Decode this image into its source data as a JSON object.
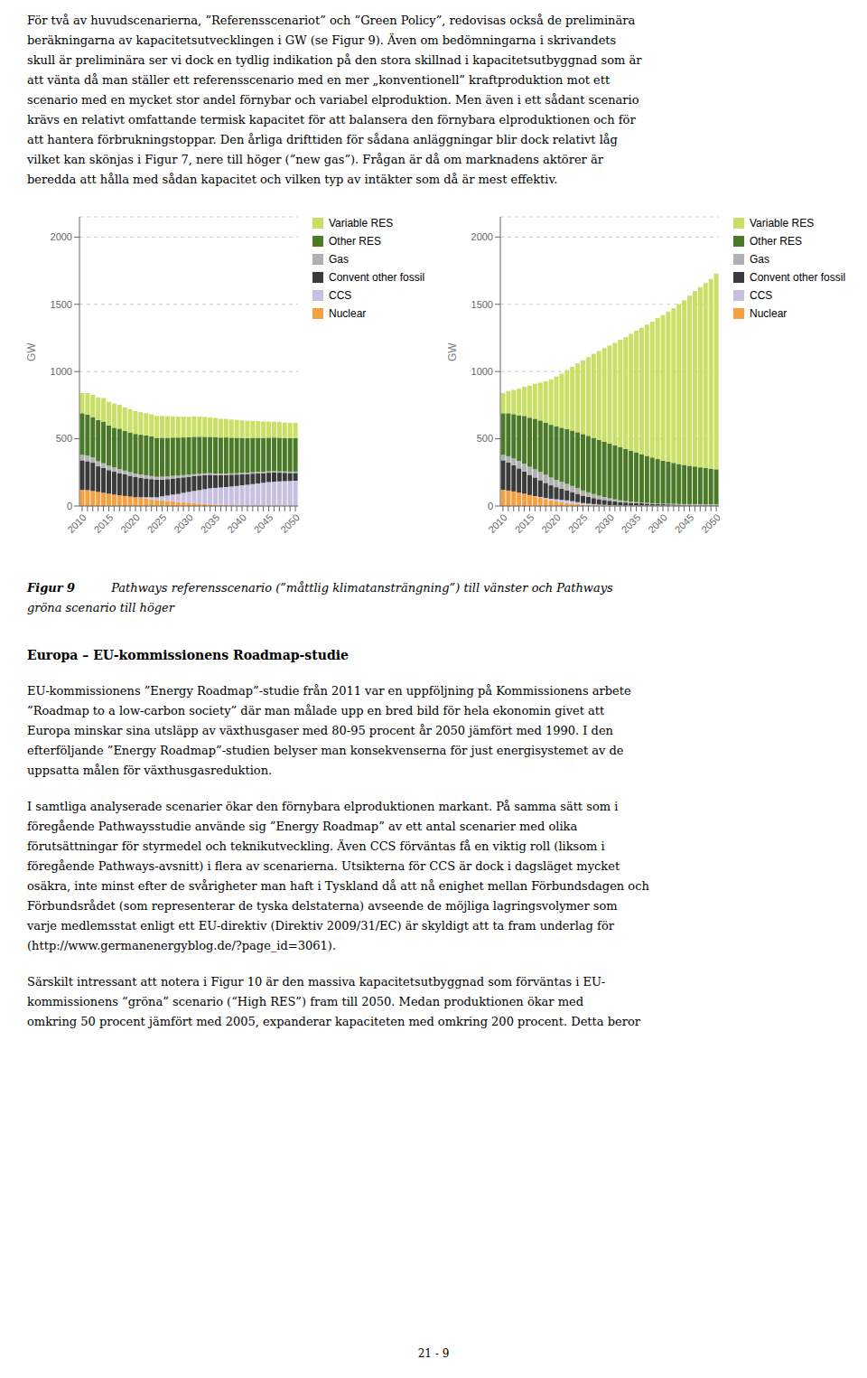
{
  "chart_data": [
    {
      "type": "bar",
      "stacked": true,
      "categories": [
        "2010",
        null,
        null,
        null,
        null,
        "2015",
        null,
        null,
        null,
        null,
        "2020",
        null,
        null,
        null,
        null,
        "2025",
        null,
        null,
        null,
        null,
        "2030",
        null,
        null,
        null,
        null,
        "2035",
        null,
        null,
        null,
        null,
        "2040",
        null,
        null,
        null,
        null,
        "2045",
        null,
        null,
        null,
        null,
        "2050"
      ],
      "series": [
        {
          "name": "Nuclear",
          "color": "#F4A142",
          "values": [
            120,
            118,
            112,
            105,
            98,
            92,
            85,
            80,
            75,
            70,
            65,
            60,
            55,
            50,
            45,
            42,
            38,
            35,
            30,
            28,
            25,
            22,
            18,
            15,
            12,
            10,
            8,
            6,
            5,
            4,
            4,
            3,
            3,
            3,
            3,
            3,
            3,
            3,
            3,
            3,
            3
          ]
        },
        {
          "name": "CCS",
          "color": "#C8C0E0",
          "values": [
            0,
            0,
            0,
            0,
            0,
            0,
            0,
            0,
            0,
            0,
            0,
            5,
            10,
            15,
            20,
            30,
            40,
            50,
            60,
            70,
            80,
            90,
            100,
            110,
            120,
            125,
            130,
            135,
            140,
            145,
            150,
            155,
            160,
            165,
            170,
            175,
            178,
            180,
            182,
            183,
            185
          ]
        },
        {
          "name": "Convent other fossil",
          "color": "#3A3A3A",
          "values": [
            220,
            215,
            210,
            190,
            185,
            175,
            170,
            165,
            160,
            155,
            150,
            145,
            140,
            135,
            130,
            125,
            122,
            120,
            118,
            115,
            112,
            110,
            108,
            105,
            100,
            95,
            92,
            90,
            88,
            85,
            82,
            80,
            78,
            75,
            72,
            70,
            68,
            65,
            62,
            60,
            58
          ]
        },
        {
          "name": "Gas",
          "color": "#B0B0B0",
          "values": [
            40,
            42,
            40,
            38,
            35,
            33,
            32,
            30,
            28,
            27,
            26,
            25,
            24,
            23,
            22,
            21,
            20,
            19,
            18,
            17,
            16,
            15,
            14,
            13,
            12,
            12,
            11,
            11,
            10,
            10,
            10,
            10,
            10,
            10,
            10,
            10,
            10,
            10,
            10,
            10,
            10
          ]
        },
        {
          "name": "Other RES",
          "color": "#4A7A28",
          "values": [
            310,
            305,
            300,
            305,
            310,
            300,
            295,
            300,
            295,
            295,
            295,
            295,
            295,
            295,
            290,
            290,
            288,
            285,
            283,
            280,
            278,
            278,
            275,
            272,
            270,
            270,
            268,
            268,
            265,
            263,
            260,
            258,
            256,
            254,
            252,
            250,
            250,
            250,
            248,
            248,
            248
          ]
        },
        {
          "name": "Variable RES",
          "color": "#C8E066",
          "values": [
            150,
            160,
            165,
            170,
            175,
            175,
            180,
            178,
            175,
            172,
            170,
            168,
            166,
            164,
            163,
            162,
            160,
            158,
            156,
            154,
            152,
            152,
            150,
            148,
            145,
            143,
            140,
            138,
            135,
            133,
            130,
            128,
            126,
            124,
            122,
            120,
            118,
            118,
            116,
            115,
            115
          ]
        }
      ],
      "ylabel": "GW",
      "ylim": [
        0,
        2150
      ],
      "yticks": [
        0,
        500,
        1000,
        1500,
        2000
      ],
      "grid": true,
      "legend": "right"
    },
    {
      "type": "bar",
      "stacked": true,
      "categories": [
        "2010",
        null,
        null,
        null,
        null,
        "2015",
        null,
        null,
        null,
        null,
        "2020",
        null,
        null,
        null,
        null,
        "2025",
        null,
        null,
        null,
        null,
        "2030",
        null,
        null,
        null,
        null,
        "2035",
        null,
        null,
        null,
        null,
        "2040",
        null,
        null,
        null,
        null,
        "2045",
        null,
        null,
        null,
        null,
        "2050"
      ],
      "series": [
        {
          "name": "Nuclear",
          "color": "#F4A142",
          "values": [
            120,
            115,
            108,
            100,
            92,
            82,
            72,
            62,
            52,
            42,
            35,
            28,
            22,
            18,
            14,
            10,
            8,
            6,
            5,
            4,
            3,
            3,
            2,
            2,
            2,
            2,
            2,
            2,
            2,
            2,
            2,
            2,
            2,
            2,
            2,
            2,
            2,
            2,
            2,
            2,
            2
          ]
        },
        {
          "name": "CCS",
          "color": "#C8C0E0",
          "values": [
            0,
            0,
            0,
            0,
            0,
            0,
            2,
            5,
            8,
            12,
            15,
            18,
            20,
            18,
            15,
            12,
            10,
            8,
            6,
            5,
            4,
            3,
            3,
            2,
            2,
            2,
            2,
            2,
            2,
            2,
            2,
            2,
            2,
            2,
            2,
            2,
            2,
            2,
            2,
            2,
            2
          ]
        },
        {
          "name": "Convent other fossil",
          "color": "#3A3A3A",
          "values": [
            220,
            210,
            195,
            180,
            165,
            150,
            138,
            125,
            112,
            100,
            90,
            82,
            75,
            68,
            62,
            55,
            50,
            45,
            40,
            36,
            32,
            28,
            25,
            22,
            20,
            18,
            16,
            14,
            12,
            10,
            9,
            8,
            7,
            6,
            5,
            5,
            5,
            4,
            4,
            4,
            4
          ]
        },
        {
          "name": "Gas",
          "color": "#B0B0B0",
          "values": [
            40,
            45,
            50,
            55,
            58,
            60,
            62,
            62,
            60,
            58,
            55,
            52,
            48,
            45,
            42,
            38,
            34,
            30,
            26,
            22,
            18,
            15,
            12,
            10,
            8,
            7,
            6,
            5,
            5,
            5,
            5,
            5,
            5,
            5,
            5,
            5,
            5,
            5,
            5,
            5,
            5
          ]
        },
        {
          "name": "Other RES",
          "color": "#4A7A28",
          "values": [
            310,
            320,
            330,
            340,
            355,
            365,
            375,
            382,
            388,
            392,
            398,
            402,
            408,
            412,
            416,
            420,
            420,
            418,
            415,
            412,
            408,
            402,
            396,
            388,
            380,
            370,
            360,
            350,
            340,
            330,
            320,
            312,
            305,
            298,
            292,
            285,
            280,
            275,
            270,
            265,
            260
          ]
        },
        {
          "name": "Variable RES",
          "color": "#C8E066",
          "values": [
            150,
            165,
            180,
            198,
            218,
            238,
            260,
            282,
            308,
            338,
            370,
            402,
            438,
            475,
            512,
            548,
            585,
            625,
            660,
            695,
            728,
            762,
            798,
            832,
            868,
            905,
            940,
            975,
            1010,
            1048,
            1082,
            1118,
            1150,
            1188,
            1225,
            1265,
            1305,
            1340,
            1375,
            1410,
            1455
          ]
        }
      ],
      "ylabel": "GW",
      "ylim": [
        0,
        2150
      ],
      "yticks": [
        0,
        500,
        1000,
        1500,
        2000
      ],
      "grid": true,
      "legend": "right"
    }
  ],
  "annotations": [
    [
      "För två av huvudscenarierna, ”Referensscenariot” och ”Green Policy”, redovisas också de preliminära",
      "beräkningarna av kapacitetsutvecklingen i GW (se Figur 9). Även om bedömningarna i skrivandets",
      "skull är preliminära ser vi dock en tydlig indikation på den stora skillnad i kapacitetsutbyggnad som är",
      "att vänta då man ställer ett referensscenario med en mer „konventionell” kraftproduktion mot ett",
      "scenario med en mycket stor andel förnybar och variabel elproduktion. Men även i ett sådant scenario",
      "krävs en relativt omfattande termisk kapacitet för att balansera den förnybara elproduktionen och för",
      "att hantera förbrukningstoppar. Den årliga drifttiden för sådana anläggningar blir dock relativt låg",
      "vilket kan skönjas i Figur 7, nere till höger (”new gas”). Frågan är då om marknadens aktörer är",
      "beredda att hålla med sådan kapacitet och vilken typ av intäkter som då är mest effektiv."
    ],
    [
      "Figur 9",
      "Pathways referensscenario (”måttlig klimatansträngning”) till vänster och Pathways",
      "gröna scenario till höger"
    ],
    [
      "Europa – EU-kommissionens Roadmap-studie"
    ],
    [
      "EU-kommissionens ”Energy Roadmap”-studie från 2011 var en uppföljning på Kommissionens arbete",
      "”Roadmap to a low-carbon society” där man målade upp en bred bild för hela ekonomin givet att",
      "Europa minskar sina utsläpp av växthusgaser med 80-95 procent år 2050 jämfört med 1990. I den",
      "efterföljande ”Energy Roadmap”-studien belyser man konsekvenserna för just energisystemet av de",
      "uppsatta målen för växthusgasreduktion."
    ],
    [
      "I samtliga analyserade scenarier ökar den förnybara elproduktionen markant. På samma sätt som i",
      "föregående Pathwaysstudie använde sig ”Energy Roadmap” av ett antal scenarier med olika",
      "förutsättningar för styrmedel och teknikutveckling. Även CCS förväntas få en viktig roll (liksom i",
      "föregående Pathways-avsnitt) i flera av scenarierna. Utsikterna för CCS är dock i dagsläget mycket",
      "osäkra, inte minst efter de svårigheter man haft i Tyskland då att nå enighet mellan Förbundsdagen och",
      "Förbundsrådet (som representerar de tyska delstaterna) avseende de möjliga lagringsvolymer som",
      "varje medlemsstat enligt ett EU-direktiv (Direktiv 2009/31/EC) är skyldigt att ta fram underlag för",
      "(http://www.germanenergyblog.de/?page_id=3061)."
    ],
    [
      "Särskilt intressant att notera i Figur 10 är den massiva kapacitetsutbyggnad som förväntas i EU-",
      "kommissionens “gröna” scenario (“High RES”) fram till 2050. Medan produktionen ökar med",
      "omkring 50 procent jämfört med 2005, expanderar kapaciteten med omkring 200 procent. Detta beror"
    ],
    [
      "21 - 9"
    ]
  ]
}
